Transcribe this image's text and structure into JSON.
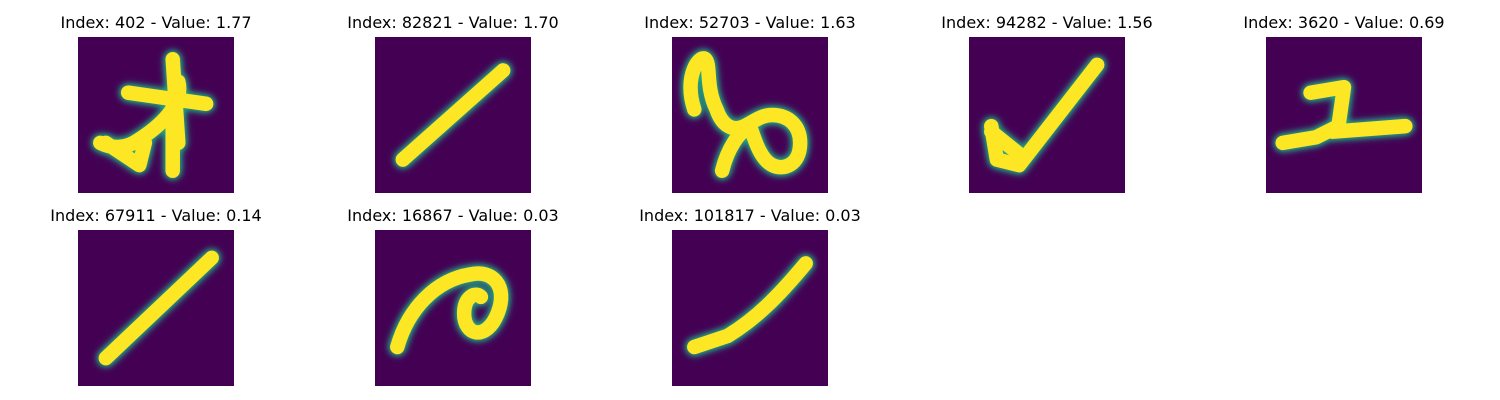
{
  "figure": {
    "colormap": {
      "background": "#440154",
      "edge": "#22a884",
      "stroke": "#fde725"
    },
    "panels": [
      {
        "title": "Index: 402 - Value: 1.77",
        "glyph": "cross-star-blob"
      },
      {
        "title": "Index: 82821 - Value: 1.70",
        "glyph": "thick-diagonal-stroke"
      },
      {
        "title": "Index: 52703 - Value: 1.63",
        "glyph": "looped-squiggle"
      },
      {
        "title": "Index: 94282 - Value: 1.56",
        "glyph": "checkmark"
      },
      {
        "title": "Index: 3620 - Value: 0.69",
        "glyph": "flat-two"
      },
      {
        "title": "Index: 67911 - Value: 0.14",
        "glyph": "thin-diagonal-stroke"
      },
      {
        "title": "Index: 16867 - Value: 0.03",
        "glyph": "curl-hook"
      },
      {
        "title": "Index: 101817 - Value: 0.03",
        "glyph": "tapered-diagonal-stroke"
      }
    ]
  }
}
